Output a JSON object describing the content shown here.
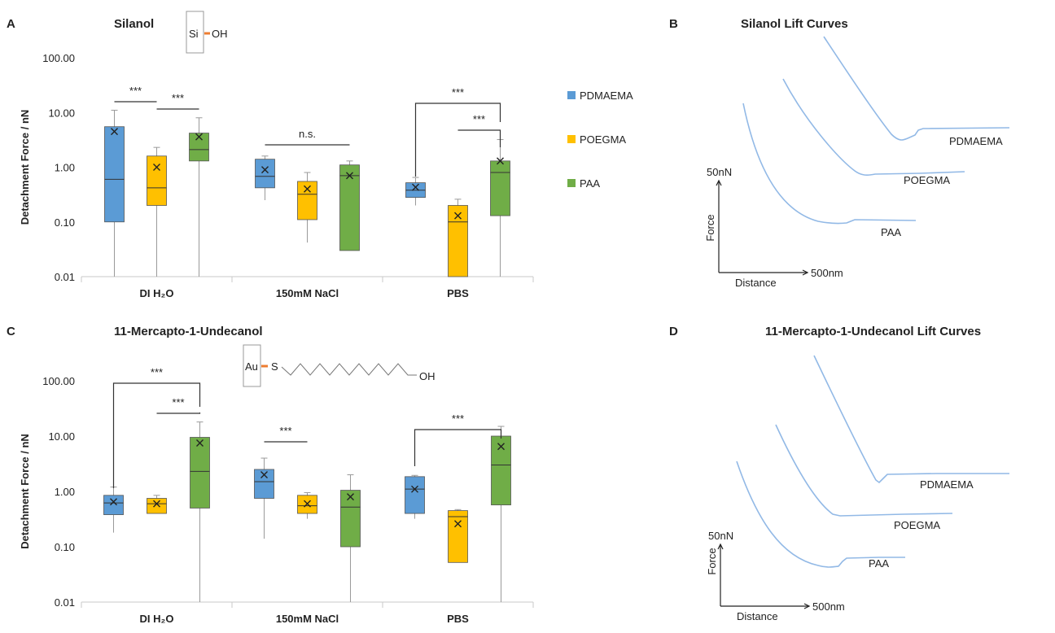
{
  "figure": {
    "panels": {
      "A": "A",
      "B": "B",
      "C": "C",
      "D": "D"
    },
    "molecules": {
      "silanol": {
        "atom": "Si",
        "group": "OH"
      },
      "mercapto": {
        "atom": "Au",
        "link": "S",
        "group": "OH"
      }
    },
    "colors": {
      "PDMAEMA": "#5b9bd5",
      "POEGMA": "#ffc000",
      "PAA": "#70ad47",
      "curve": "#92b9e6"
    }
  },
  "chart_data": [
    {
      "id": "A",
      "type": "box",
      "title": "Silanol",
      "ylabel": "Detachment Force / nN",
      "yscale": "log",
      "ylim": [
        0.01,
        100
      ],
      "yticks": [
        "100.00",
        "10.00",
        "1.00",
        "0.10",
        "0.01"
      ],
      "categories": [
        "DI H₂O",
        "150mM NaCl",
        "PBS"
      ],
      "legend": [
        "PDMAEMA",
        "POEGMA",
        "PAA"
      ],
      "series": [
        {
          "name": "PDMAEMA",
          "boxes": [
            {
              "min": 0.01,
              "q1": 0.1,
              "median": 0.6,
              "q3": 5.5,
              "max": 11,
              "mean": 4.5
            },
            {
              "min": 0.25,
              "q1": 0.42,
              "median": 0.68,
              "q3": 1.4,
              "max": 1.6,
              "mean": 0.9
            },
            {
              "min": 0.2,
              "q1": 0.28,
              "median": 0.38,
              "q3": 0.52,
              "max": 0.65,
              "mean": 0.43
            }
          ]
        },
        {
          "name": "POEGMA",
          "boxes": [
            {
              "min": 0.01,
              "q1": 0.2,
              "median": 0.42,
              "q3": 1.6,
              "max": 2.3,
              "mean": 1.0
            },
            {
              "min": 0.042,
              "q1": 0.11,
              "median": 0.32,
              "q3": 0.55,
              "max": 0.8,
              "mean": 0.4
            },
            {
              "min": 0.01,
              "q1": 0.01,
              "median": 0.1,
              "q3": 0.2,
              "max": 0.26,
              "mean": 0.13
            }
          ]
        },
        {
          "name": "PAA",
          "boxes": [
            {
              "min": 0.01,
              "q1": 1.3,
              "median": 2.1,
              "q3": 4.2,
              "max": 8,
              "mean": 3.6
            },
            {
              "min": 0.03,
              "q1": 0.03,
              "median": 0.7,
              "q3": 1.1,
              "max": 1.3,
              "mean": 0.7
            },
            {
              "min": 0.01,
              "q1": 0.13,
              "median": 0.8,
              "q3": 1.3,
              "max": 3.2,
              "mean": 1.3
            }
          ]
        }
      ],
      "significance": [
        {
          "label": "***",
          "from": [
            0,
            0
          ],
          "to": [
            0,
            1
          ],
          "style": "line"
        },
        {
          "label": "***",
          "from": [
            0,
            1
          ],
          "to": [
            0,
            2
          ],
          "style": "line"
        },
        {
          "label": "n.s.",
          "from": [
            1,
            0
          ],
          "to": [
            1,
            2
          ],
          "style": "line"
        },
        {
          "label": "***",
          "from": [
            2,
            0
          ],
          "to": [
            2,
            2
          ],
          "style": "bracket"
        },
        {
          "label": "***",
          "from": [
            2,
            1
          ],
          "to": [
            2,
            2
          ],
          "style": "drop"
        }
      ]
    },
    {
      "id": "B",
      "type": "line",
      "title": "Silanol Lift Curves",
      "ylabel": "Force",
      "xlabel": "Distance",
      "scale_y": "50nN",
      "scale_x": "500nm",
      "series": [
        {
          "name": "PDMAEMA"
        },
        {
          "name": "POEGMA"
        },
        {
          "name": "PAA"
        }
      ]
    },
    {
      "id": "C",
      "type": "box",
      "title": "11-Mercapto-1-Undecanol",
      "ylabel": "Detachment Force / nN",
      "yscale": "log",
      "ylim": [
        0.01,
        100
      ],
      "yticks": [
        "100.00",
        "10.00",
        "1.00",
        "0.10",
        "0.01"
      ],
      "categories": [
        "DI H₂O",
        "150mM NaCl",
        "PBS"
      ],
      "series": [
        {
          "name": "PDMAEMA",
          "boxes": [
            {
              "min": 0.18,
              "q1": 0.38,
              "median": 0.62,
              "q3": 0.85,
              "max": 1.2,
              "mean": 0.65
            },
            {
              "min": 0.14,
              "q1": 0.75,
              "median": 1.5,
              "q3": 2.5,
              "max": 4,
              "mean": 2.0
            },
            {
              "min": 0.32,
              "q1": 0.4,
              "median": 1.1,
              "q3": 1.85,
              "max": 1.95,
              "mean": 1.1
            }
          ]
        },
        {
          "name": "POEGMA",
          "boxes": [
            {
              "min": 0.4,
              "q1": 0.4,
              "median": 0.6,
              "q3": 0.75,
              "max": 0.85,
              "mean": 0.6
            },
            {
              "min": 0.32,
              "q1": 0.4,
              "median": 0.55,
              "q3": 0.85,
              "max": 0.95,
              "mean": 0.6
            },
            {
              "min": 0.052,
              "q1": 0.052,
              "median": 0.35,
              "q3": 0.45,
              "max": 0.47,
              "mean": 0.26
            }
          ]
        },
        {
          "name": "PAA",
          "boxes": [
            {
              "min": 0.01,
              "q1": 0.5,
              "median": 2.3,
              "q3": 9.5,
              "max": 18,
              "mean": 7.5
            },
            {
              "min": 0.01,
              "q1": 0.1,
              "median": 0.52,
              "q3": 1.05,
              "max": 2,
              "mean": 0.8
            },
            {
              "min": 0.01,
              "q1": 0.57,
              "median": 3,
              "q3": 10,
              "max": 15,
              "mean": 6.5
            }
          ]
        }
      ],
      "significance": [
        {
          "label": "***",
          "from": [
            0,
            0
          ],
          "to": [
            0,
            2
          ],
          "style": "bracket"
        },
        {
          "label": "***",
          "from": [
            0,
            1
          ],
          "to": [
            0,
            2
          ],
          "style": "drop"
        },
        {
          "label": "***",
          "from": [
            1,
            0
          ],
          "to": [
            1,
            1
          ],
          "style": "line"
        },
        {
          "label": "***",
          "from": [
            2,
            0
          ],
          "to": [
            2,
            2
          ],
          "style": "bracket"
        }
      ]
    },
    {
      "id": "D",
      "type": "line",
      "title": "11-Mercapto-1-Undecanol Lift Curves",
      "ylabel": "Force",
      "xlabel": "Distance",
      "scale_y": "50nN",
      "scale_x": "500nm",
      "series": [
        {
          "name": "PDMAEMA"
        },
        {
          "name": "POEGMA"
        },
        {
          "name": "PAA"
        }
      ]
    }
  ]
}
